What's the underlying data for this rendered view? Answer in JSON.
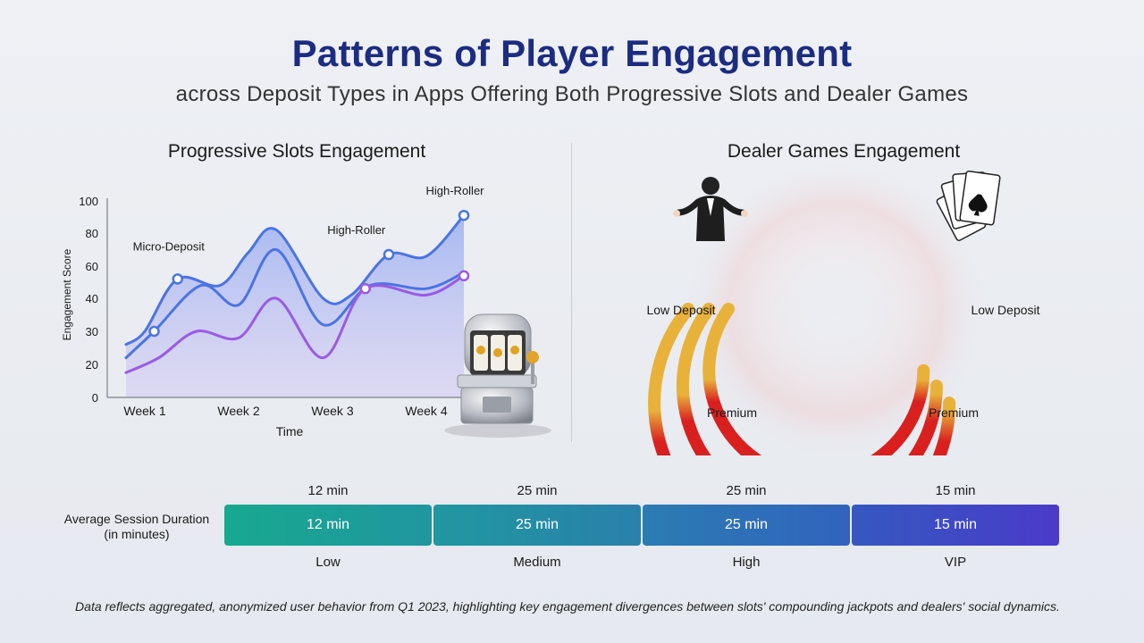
{
  "title": "Patterns of Player Engagement",
  "subtitle": "across Deposit Types in Apps Offering Both Progressive Slots and Dealer Games",
  "slots_panel": {
    "title": "Progressive Slots Engagement",
    "icon": "slot-machine-icon"
  },
  "dealer_panel": {
    "title": "Dealer Games Engagement",
    "labels": {
      "top_left": "Low Deposit",
      "top_right": "Low Deposit",
      "bottom_left": "Premium",
      "bottom_right": "Premium"
    },
    "icons": [
      "dealer-icon",
      "playing-cards-icon"
    ],
    "colors": {
      "low": "#e8b23a",
      "high": "#d9201f"
    }
  },
  "duration": {
    "label_line1": "Average Session Duration",
    "label_line2": "(in minutes)",
    "segments": [
      {
        "tier": "Low",
        "top": "12 min",
        "value": "12 min",
        "color_from": "#17a98f",
        "color_to": "#2096a0"
      },
      {
        "tier": "Medium",
        "top": "25 min",
        "value": "25 min",
        "color_from": "#2098a0",
        "color_to": "#2a80ab"
      },
      {
        "tier": "High",
        "top": "25 min",
        "value": "25 min",
        "color_from": "#2b7cb3",
        "color_to": "#3163bd"
      },
      {
        "tier": "VIP",
        "top": "15 min",
        "value": "15 min",
        "color_from": "#3558c0",
        "color_to": "#4a3bc9"
      }
    ]
  },
  "footnote": "Data reflects aggregated, anonymized user behavior from Q1 2023, highlighting key engagement divergences between slots' compounding jackpots and dealers' social dynamics.",
  "chart_data": {
    "type": "line",
    "title": "Progressive Slots Engagement",
    "xlabel": "Time",
    "ylabel": "Engagement Score",
    "yticks": [
      "0",
      "20",
      "30",
      "40",
      "60",
      "80",
      "100"
    ],
    "categories": [
      "Week 1",
      "Week 2",
      "Week 3",
      "Week 4"
    ],
    "ylim": [
      0,
      100
    ],
    "annotations": [
      {
        "text": "Micro-Deposit",
        "x": 0.35,
        "y": 62
      },
      {
        "text": "High-Roller",
        "x": 2.35,
        "y": 72
      },
      {
        "text": "High-Roller",
        "x": 3.4,
        "y": 96
      }
    ],
    "series": [
      {
        "color": "#4b74e2",
        "x": [
          -0.2,
          0.0,
          0.35,
          0.8,
          1.1,
          1.4,
          1.9,
          2.2,
          2.6,
          3.0,
          3.4
        ],
        "values": [
          26,
          30,
          52,
          48,
          68,
          82,
          40,
          42,
          67,
          66,
          91
        ],
        "markers": [
          2,
          8,
          10
        ]
      },
      {
        "color": "#4b74e2",
        "x": [
          -0.2,
          0.1,
          0.6,
          1.0,
          1.4,
          1.9,
          2.4,
          3.0,
          3.4
        ],
        "values": [
          22,
          30,
          48,
          38,
          70,
          32,
          48,
          46,
          56
        ],
        "markers": [
          1
        ]
      },
      {
        "color": "#9a5be3",
        "x": [
          -0.2,
          0.15,
          0.55,
          1.0,
          1.4,
          1.9,
          2.35,
          3.0,
          3.4
        ],
        "values": [
          15,
          22,
          30,
          28,
          40,
          22,
          46,
          42,
          54
        ],
        "markers": [
          6,
          8
        ]
      }
    ]
  }
}
